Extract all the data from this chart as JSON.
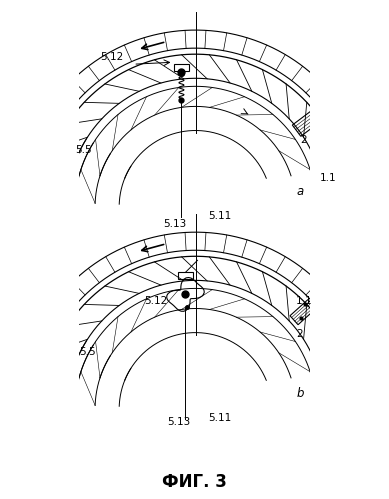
{
  "fig_width": 3.89,
  "fig_height": 4.99,
  "dpi": 100,
  "bg_color": "#ffffff",
  "title": "ФИГ. 3"
}
